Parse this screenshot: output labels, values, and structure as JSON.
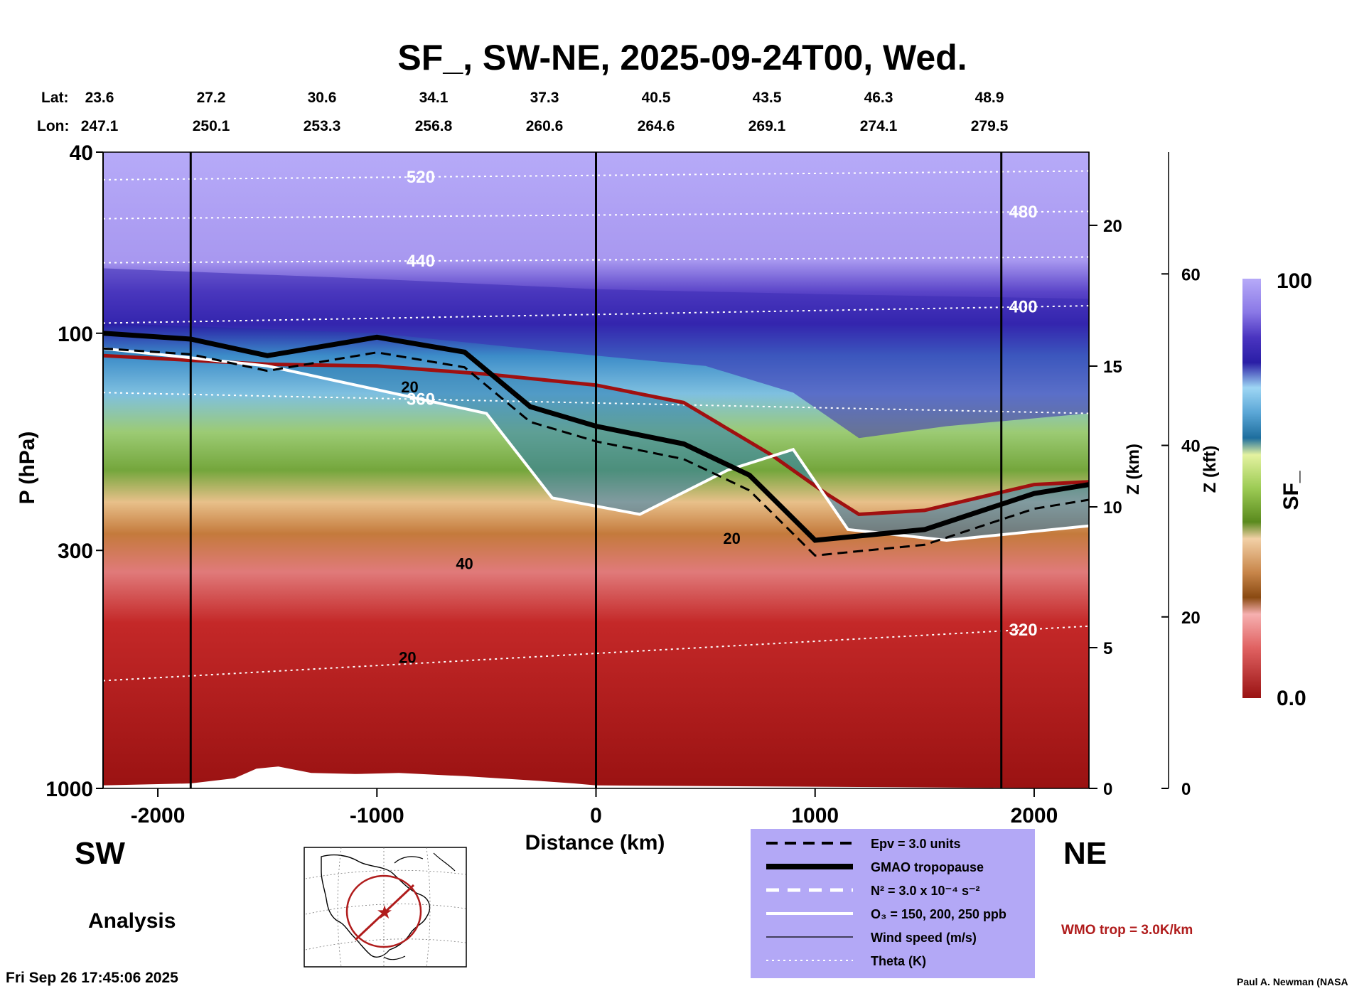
{
  "chart_data": {
    "type": "heatmap",
    "title": "SF_, SW-NE, 2025-09-24T00, Wed.",
    "xlabel": "Distance (km)",
    "ylabel": "P (hPa)",
    "ylabel_right_km": "Z (km)",
    "ylabel_right_kft": "Z (kft)",
    "colorbar_label": "SF_",
    "colorbar_range": [
      0.0,
      100
    ],
    "colorbar_ticks": [
      "100",
      "0.0"
    ],
    "xlim": [
      -2250,
      2250
    ],
    "ylim": [
      1000,
      40
    ],
    "y_log_scale": true,
    "x_ticks": [
      {
        "value": -2000,
        "label": "-2000"
      },
      {
        "value": -1000,
        "label": "-1000"
      },
      {
        "value": 0,
        "label": "0"
      },
      {
        "value": 1000,
        "label": "1000"
      },
      {
        "value": 2000,
        "label": "2000"
      }
    ],
    "y_ticks": [
      {
        "value": 40,
        "label": "40"
      },
      {
        "value": 100,
        "label": "100"
      },
      {
        "value": 300,
        "label": "300"
      },
      {
        "value": 1000,
        "label": "1000"
      }
    ],
    "z_km_ticks": [
      {
        "value": 0,
        "label": "0"
      },
      {
        "value": 5,
        "label": "5"
      },
      {
        "value": 10,
        "label": "10"
      },
      {
        "value": 15,
        "label": "15"
      },
      {
        "value": 20,
        "label": "20"
      }
    ],
    "z_kft_ticks": [
      {
        "value": 0,
        "label": "0"
      },
      {
        "value": 20,
        "label": "20"
      },
      {
        "value": 40,
        "label": "40"
      },
      {
        "value": 60,
        "label": "60"
      }
    ],
    "lat_label": "Lat:",
    "lon_label": "Lon:",
    "lat_lon_columns": [
      {
        "lat": "23.6",
        "lon": "247.1"
      },
      {
        "lat": "27.2",
        "lon": "250.1"
      },
      {
        "lat": "30.6",
        "lon": "253.3"
      },
      {
        "lat": "34.1",
        "lon": "256.8"
      },
      {
        "lat": "37.3",
        "lon": "260.6"
      },
      {
        "lat": "40.5",
        "lon": "264.6"
      },
      {
        "lat": "43.5",
        "lon": "269.1"
      },
      {
        "lat": "46.3",
        "lon": "274.1"
      },
      {
        "lat": "48.9",
        "lon": "279.5"
      }
    ],
    "vertical_markers_km": [
      -1850,
      0,
      1850
    ],
    "theta_contours": [
      {
        "label": "520",
        "p_left": 46,
        "p_right": 44
      },
      {
        "label": "480",
        "p_left": 56,
        "p_right": 54
      },
      {
        "label": "440",
        "p_left": 70,
        "p_right": 68
      },
      {
        "label": "400",
        "p_left": 95,
        "p_right": 87
      },
      {
        "label": "360",
        "p_left": 135,
        "p_right": 150
      },
      {
        "label": "320",
        "p_left": 580,
        "p_right": 440
      }
    ],
    "wind_speed_labels": [
      "20",
      "40",
      "20",
      "20"
    ],
    "tropopause_gmao_hpa": [
      {
        "x": -2250,
        "p": 100
      },
      {
        "x": -1850,
        "p": 103
      },
      {
        "x": -1500,
        "p": 112
      },
      {
        "x": -1000,
        "p": 102
      },
      {
        "x": -600,
        "p": 110
      },
      {
        "x": -300,
        "p": 145
      },
      {
        "x": 0,
        "p": 160
      },
      {
        "x": 400,
        "p": 175
      },
      {
        "x": 700,
        "p": 205
      },
      {
        "x": 1000,
        "p": 285
      },
      {
        "x": 1500,
        "p": 270
      },
      {
        "x": 2000,
        "p": 225
      },
      {
        "x": 2250,
        "p": 215
      }
    ],
    "wmo_tropopause_hpa": [
      {
        "x": -2250,
        "p": 112
      },
      {
        "x": -1500,
        "p": 117
      },
      {
        "x": -1000,
        "p": 118
      },
      {
        "x": -500,
        "p": 123
      },
      {
        "x": 0,
        "p": 130
      },
      {
        "x": 400,
        "p": 142
      },
      {
        "x": 800,
        "p": 185
      },
      {
        "x": 1050,
        "p": 225
      },
      {
        "x": 1200,
        "p": 250
      },
      {
        "x": 1500,
        "p": 245
      },
      {
        "x": 2000,
        "p": 215
      },
      {
        "x": 2250,
        "p": 212
      }
    ],
    "stratosphere_top_hpa": [
      {
        "x": -2250,
        "p": 108
      },
      {
        "x": -1500,
        "p": 118
      },
      {
        "x": -500,
        "p": 150
      },
      {
        "x": -200,
        "p": 230
      },
      {
        "x": 200,
        "p": 250
      },
      {
        "x": 600,
        "p": 200
      },
      {
        "x": 900,
        "p": 180
      },
      {
        "x": 1150,
        "p": 270
      },
      {
        "x": 1600,
        "p": 285
      },
      {
        "x": 2250,
        "p": 265
      }
    ],
    "legend": [
      {
        "label": "Epv = 3.0 units",
        "style": "dashed-black"
      },
      {
        "label": "GMAO tropopause",
        "style": "thick-black"
      },
      {
        "label": "N² = 3.0 x 10⁻⁴ s⁻²",
        "style": "dashed-white"
      },
      {
        "label": "O₃ = 150, 200, 250 ppb",
        "style": "solid-white"
      },
      {
        "label": "Wind speed (m/s)",
        "style": "thin-black"
      },
      {
        "label": "Theta (K)",
        "style": "dotted-white"
      }
    ],
    "wmo_trop_note": "WMO trop = 3.0K/km",
    "colors": {
      "legend_bg": "#b3a8f6",
      "wmo_line": "#a01010",
      "low_sf": "#9a1212",
      "high_sf": "#b6aaf8"
    }
  },
  "labels": {
    "sw": "SW",
    "ne": "NE",
    "analysis": "Analysis",
    "timestamp": "Fri Sep 26 17:45:06 2025",
    "credit": "Paul A. Newman (NASA"
  }
}
